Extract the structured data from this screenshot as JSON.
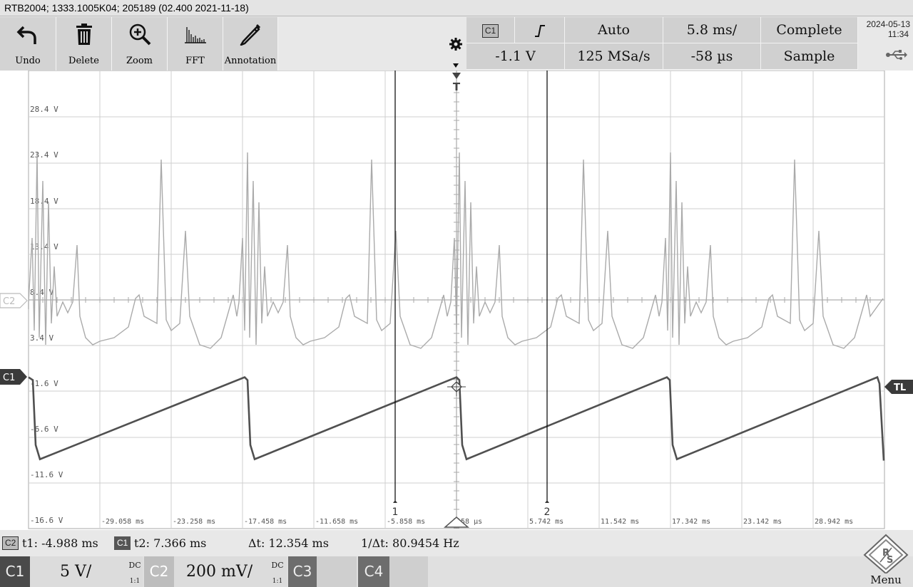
{
  "title_bar": "RTB2004; 1333.1005K04; 205189 (02.400 2021-11-18)",
  "toolbar": {
    "undo": "Undo",
    "delete": "Delete",
    "zoom": "Zoom",
    "fft": "FFT",
    "annotation": "Annotation"
  },
  "status": {
    "channel_badge": "C1",
    "trigger_mode": "Auto",
    "timebase": "5.8 ms/",
    "acq_state": "Complete",
    "trigger_level": "-1.1 V",
    "sample_rate": "125 MSa/s",
    "horizontal_position": "-58 µs",
    "acq_mode": "Sample"
  },
  "datetime": {
    "date": "2024-05-13",
    "time": "11:34"
  },
  "waveform": {
    "v_labels": [
      "28.4 V",
      "23.4 V",
      "18.4 V",
      "13.4 V",
      "8.4 V",
      "3.4 V",
      "-1.6 V",
      "-6.6 V",
      "-11.6 V",
      "-16.6 V"
    ],
    "t_labels": [
      "-29.058 ms",
      "-23.258 ms",
      "-17.458 ms",
      "-11.658 ms",
      "-5.858 ms",
      "-58 µs",
      "5.742 ms",
      "11.542 ms",
      "17.342 ms",
      "23.142 ms",
      "28.942 ms"
    ],
    "c2_marker": "C2",
    "c1_marker": "C1",
    "trigger_top": "T",
    "trigger_level_marker": "TL",
    "cursor1_label": "1",
    "cursor2_label": "2",
    "c1_period_ms": 11.8,
    "c1_ramp_high_v": 0,
    "c1_ramp_low_v": -8.6
  },
  "cursor_readout": {
    "c2_badge": "C2",
    "t1": "t1: -4.988 ms",
    "c1_badge": "C1",
    "t2": "t2: 7.366 ms",
    "dt": "Δt: 12.354 ms",
    "inv_dt": "1/Δt: 80.9454 Hz"
  },
  "channels": {
    "c1": {
      "tag": "C1",
      "scale": "5 V/",
      "coupling": "DC",
      "ratio": "1:1"
    },
    "c2": {
      "tag": "C2",
      "scale": "200 mV/",
      "coupling": "DC",
      "ratio": "1:1"
    },
    "c3": {
      "tag": "C3"
    },
    "c4": {
      "tag": "C4"
    },
    "menu": "Menu"
  },
  "colors": {
    "c1_trace": "#505050",
    "c2_trace": "#a8a8a8",
    "grid": "#c8c8c8",
    "cursor": "#000000"
  }
}
